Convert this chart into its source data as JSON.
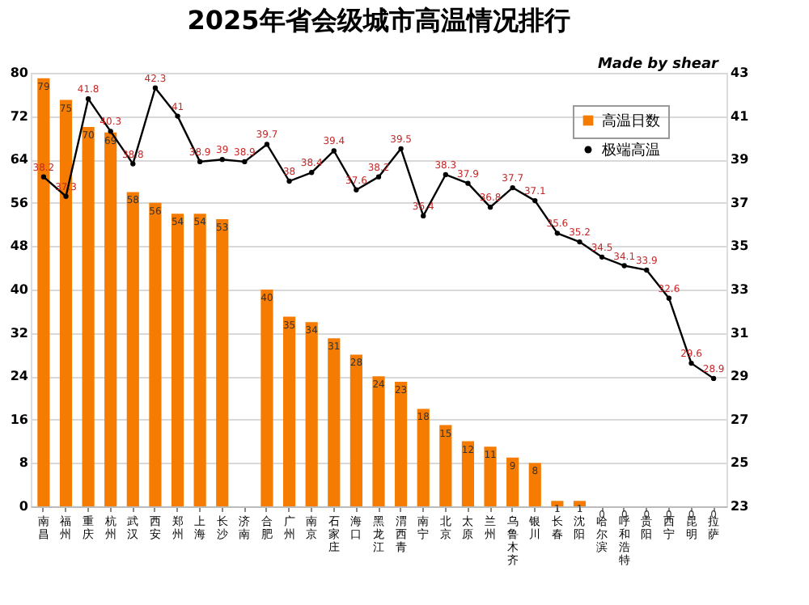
{
  "chart_data": {
    "type": "bar",
    "title": "2025年省会级城市高温情况排行",
    "annotations": [
      "Made by shear"
    ],
    "categories": [
      "南昌",
      "福州",
      "重庆",
      "杭州",
      "武汉",
      "西安",
      "郑州",
      "上海",
      "长沙",
      "济南",
      "合肥",
      "广州",
      "南京",
      "石家庄",
      "海口",
      "黑龙江",
      "渭西青",
      "南宁",
      "北京",
      "太原",
      "兰州",
      "乌鲁木齐",
      "银川",
      "长春",
      "沈阳",
      "哈尔滨",
      "呼和浩特",
      "贵阳",
      "西宁",
      "昆明",
      "拉萨"
    ],
    "series": [
      {
        "name": "高温日数",
        "color": "#f57c00",
        "values": [
          79,
          75,
          70,
          69,
          58,
          56,
          54,
          54,
          53,
          null,
          40,
          35,
          34,
          31,
          28,
          24,
          23,
          18,
          15,
          12,
          11,
          9,
          8,
          1,
          1,
          0,
          0,
          0,
          0,
          0,
          0
        ]
      },
      {
        "name": "极端高温",
        "type": "line",
        "axis": "y2",
        "color": "#000000",
        "marker": "circle",
        "values": [
          38.2,
          37.3,
          41.8,
          40.3,
          38.8,
          42.3,
          41,
          38.9,
          39,
          38.9,
          39.7,
          38,
          38.4,
          39.4,
          37.6,
          38.2,
          39.5,
          36.4,
          38.3,
          37.9,
          36.8,
          37.7,
          37.1,
          35.6,
          35.2,
          34.5,
          34.1,
          33.9,
          32.6,
          29.6,
          28.9
        ]
      }
    ],
    "ylim": [
      0,
      80
    ],
    "yticks": [
      0,
      8,
      16,
      24,
      32,
      40,
      48,
      56,
      64,
      72,
      80
    ],
    "y2lim": [
      23,
      43
    ],
    "y2ticks": [
      23,
      25,
      27,
      29,
      31,
      33,
      35,
      37,
      39,
      41,
      43
    ],
    "data_labels": true,
    "grid": "y",
    "legend": "top right"
  }
}
